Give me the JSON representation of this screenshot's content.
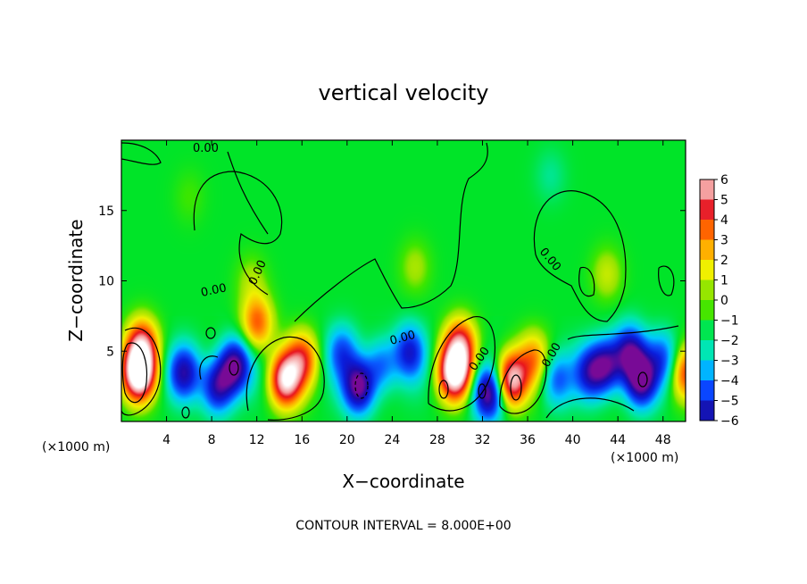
{
  "chart_data": {
    "type": "heatmap",
    "title": "vertical velocity",
    "xlabel": "X−coordinate",
    "ylabel": "Z−coordinate",
    "x_unit": "(×1000 m)",
    "y_unit": "(×1000 m)",
    "xlim": [
      0,
      50
    ],
    "ylim": [
      0,
      20
    ],
    "x_ticks": [
      4,
      8,
      12,
      16,
      20,
      24,
      28,
      32,
      36,
      40,
      44,
      48
    ],
    "y_ticks": [
      5,
      10,
      15
    ],
    "contour_interval_text": "CONTOUR INTERVAL = 8.000E+00",
    "contour_labels": [
      "0.00",
      "0.00",
      "0.00",
      "0.00",
      "0.00",
      "0.00",
      "0.00",
      "0.00"
    ],
    "colorbar": {
      "ticks": [
        "6",
        "5",
        "4",
        "3",
        "2",
        "1",
        "0",
        "−1",
        "−2",
        "−3",
        "−4",
        "−5",
        "−6"
      ],
      "colors": [
        "#f5a0a0",
        "#e8202a",
        "#ff4a00",
        "#ffa000",
        "#f2e600",
        "#b4e600",
        "#5ae600",
        "#00e53c",
        "#00e6aa",
        "#00c3ff",
        "#0a5aff",
        "#0a14c8",
        "#3c14a0",
        "#8c0a96"
      ]
    },
    "features": [
      {
        "x": 1.5,
        "z": 3.5,
        "w": 9
      },
      {
        "x": 1.8,
        "z": 5.5,
        "w": 5
      },
      {
        "x": 5.5,
        "z": 3.5,
        "w": -4.5
      },
      {
        "x": 8.5,
        "z": 2.5,
        "w": -5
      },
      {
        "x": 10,
        "z": 4,
        "w": -6
      },
      {
        "x": 12,
        "z": 7,
        "w": 4
      },
      {
        "x": 14.5,
        "z": 3,
        "w": 7
      },
      {
        "x": 16,
        "z": 4.5,
        "w": 4
      },
      {
        "x": 19.5,
        "z": 5,
        "w": -3
      },
      {
        "x": 21,
        "z": 2.5,
        "w": -6
      },
      {
        "x": 23,
        "z": 4,
        "w": -3
      },
      {
        "x": 25.5,
        "z": 5,
        "w": -4
      },
      {
        "x": 29.5,
        "z": 3.5,
        "w": 8
      },
      {
        "x": 30,
        "z": 5.5,
        "w": 5
      },
      {
        "x": 32.5,
        "z": 2,
        "w": -6
      },
      {
        "x": 34.5,
        "z": 3,
        "w": 7
      },
      {
        "x": 36.5,
        "z": 4.5,
        "w": 3
      },
      {
        "x": 38.5,
        "z": 3,
        "w": -3
      },
      {
        "x": 41.5,
        "z": 3.5,
        "w": -4
      },
      {
        "x": 43,
        "z": 4,
        "w": -5
      },
      {
        "x": 45,
        "z": 5,
        "w": -5
      },
      {
        "x": 46,
        "z": 3,
        "w": -6
      },
      {
        "x": 48,
        "z": 4.5,
        "w": -3
      },
      {
        "x": 50,
        "z": 3.5,
        "w": 4
      },
      {
        "x": 11.5,
        "z": 10,
        "w": 1.2
      },
      {
        "x": 26,
        "z": 11,
        "w": 1.2
      },
      {
        "x": 43,
        "z": 10.5,
        "w": 1.5
      },
      {
        "x": 38,
        "z": 17.5,
        "w": -0.8
      },
      {
        "x": 6,
        "z": 16,
        "w": 0.6
      }
    ]
  }
}
